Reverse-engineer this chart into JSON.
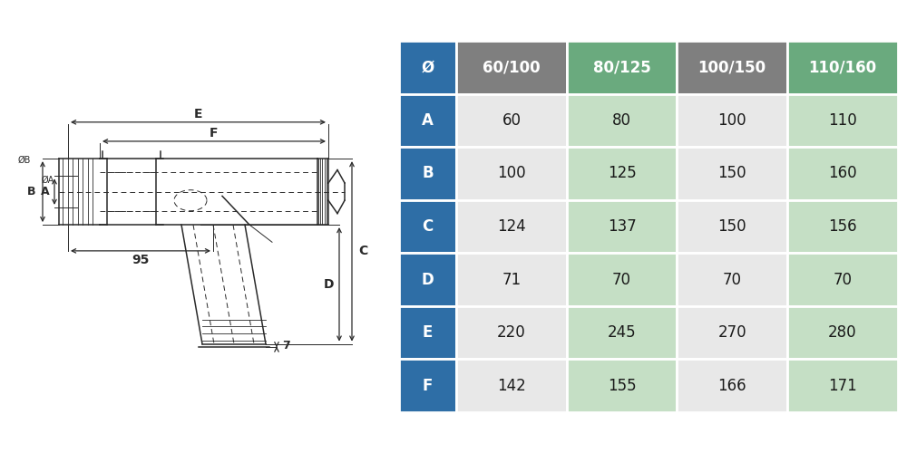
{
  "table_headers": [
    "Ø",
    "60/100",
    "80/125",
    "100/150",
    "110/160"
  ],
  "row_labels": [
    "A",
    "B",
    "C",
    "D",
    "E",
    "F"
  ],
  "table_data": [
    [
      60,
      80,
      100,
      110
    ],
    [
      100,
      125,
      150,
      160
    ],
    [
      124,
      137,
      150,
      156
    ],
    [
      71,
      70,
      70,
      70
    ],
    [
      220,
      245,
      270,
      280
    ],
    [
      142,
      155,
      166,
      171
    ]
  ],
  "header_blue": "#2e6ea6",
  "header_gray": "#7f7f7f",
  "header_green": "#6aaa7e",
  "row_blue": "#2e6ea6",
  "cell_white": "#e8e8e8",
  "cell_green": "#c5dfc5",
  "text_white": "#ffffff",
  "text_dark": "#1a1a1a",
  "bg": "#ffffff"
}
